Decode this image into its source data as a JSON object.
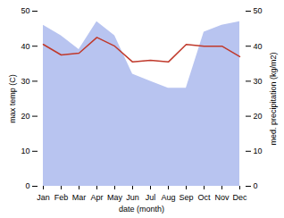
{
  "chart_data": {
    "type": "line",
    "categories": [
      "Jan",
      "Feb",
      "Mar",
      "Apr",
      "May",
      "Jun",
      "Jul",
      "Aug",
      "Sep",
      "Oct",
      "Nov",
      "Dec"
    ],
    "xlabel": "date (month)",
    "ylabel": "max temp (C)",
    "y2label": "med. precipitation (kg/m2)",
    "series": [
      {
        "name": "med. precipitation (kg/m2)",
        "type": "area",
        "axis": "y2",
        "color": "#b8c4f0",
        "values": [
          46,
          43,
          39,
          47,
          43,
          32,
          30,
          28,
          28,
          44,
          46,
          47
        ]
      },
      {
        "name": "max temp (C)",
        "type": "line",
        "color": "#c0392b",
        "values": [
          40.5,
          37.5,
          38.0,
          42.5,
          40.0,
          35.5,
          36.0,
          35.5,
          40.5,
          40.0,
          40.0,
          37.0
        ]
      }
    ],
    "ylim": [
      0,
      50
    ],
    "yticks": [
      0,
      10,
      20,
      30,
      40,
      50
    ],
    "y2lim": [
      0,
      50
    ],
    "y2ticks": [
      0,
      10,
      20,
      30,
      40,
      50
    ]
  }
}
